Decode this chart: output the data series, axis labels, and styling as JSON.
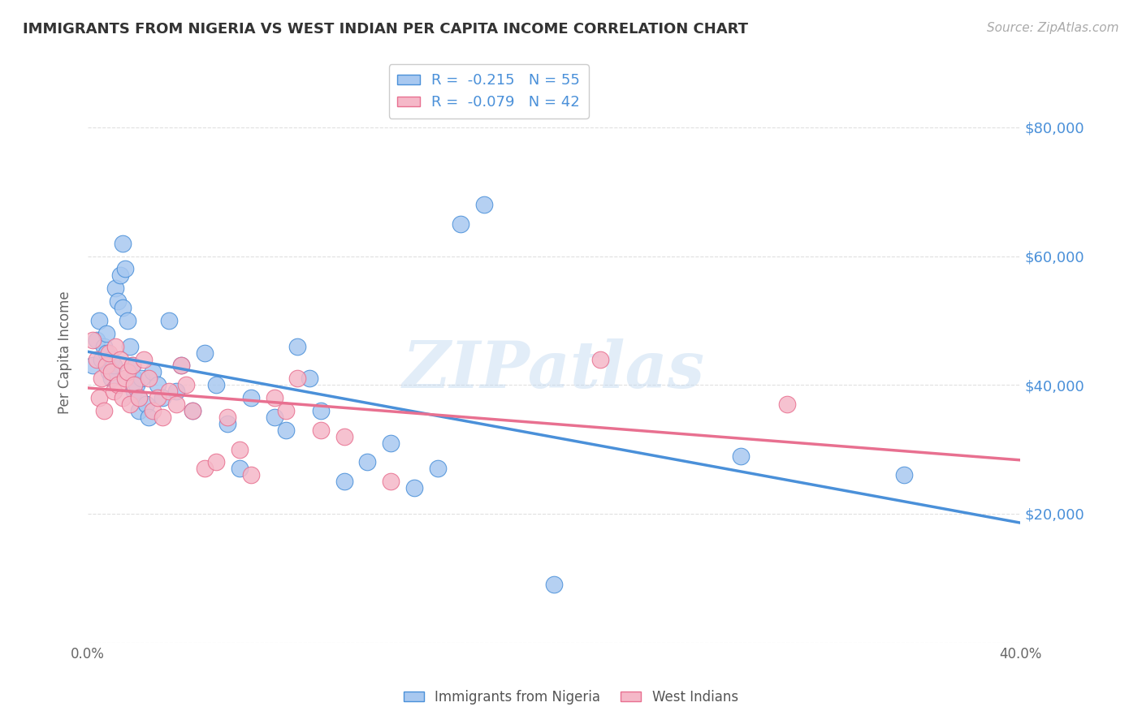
{
  "title": "IMMIGRANTS FROM NIGERIA VS WEST INDIAN PER CAPITA INCOME CORRELATION CHART",
  "source": "Source: ZipAtlas.com",
  "ylabel": "Per Capita Income",
  "yticks": [
    0,
    20000,
    40000,
    60000,
    80000
  ],
  "ytick_labels": [
    "",
    "$20,000",
    "$40,000",
    "$60,000",
    "$80,000"
  ],
  "xlim": [
    0.0,
    0.4
  ],
  "ylim": [
    0,
    90000
  ],
  "watermark": "ZIPatlas",
  "legend_r1": "R =  -0.215   N = 55",
  "legend_r2": "R =  -0.079   N = 42",
  "blue_color": "#a8c8f0",
  "pink_color": "#f5b8c8",
  "blue_line_color": "#4a90d9",
  "pink_line_color": "#e87090",
  "nigeria_x": [
    0.002,
    0.004,
    0.005,
    0.006,
    0.007,
    0.008,
    0.008,
    0.009,
    0.01,
    0.01,
    0.011,
    0.012,
    0.013,
    0.014,
    0.015,
    0.015,
    0.016,
    0.017,
    0.018,
    0.019,
    0.02,
    0.02,
    0.021,
    0.022,
    0.022,
    0.023,
    0.025,
    0.026,
    0.028,
    0.03,
    0.032,
    0.035,
    0.038,
    0.04,
    0.045,
    0.05,
    0.055,
    0.06,
    0.065,
    0.07,
    0.08,
    0.085,
    0.09,
    0.095,
    0.1,
    0.11,
    0.12,
    0.13,
    0.14,
    0.15,
    0.16,
    0.17,
    0.2,
    0.28,
    0.35
  ],
  "nigeria_y": [
    43000,
    47000,
    50000,
    44000,
    46000,
    45000,
    48000,
    42000,
    41000,
    44000,
    43000,
    55000,
    53000,
    57000,
    62000,
    52000,
    58000,
    50000,
    46000,
    43000,
    41000,
    39000,
    40000,
    38000,
    36000,
    41000,
    37000,
    35000,
    42000,
    40000,
    38000,
    50000,
    39000,
    43000,
    36000,
    45000,
    40000,
    34000,
    27000,
    38000,
    35000,
    33000,
    46000,
    41000,
    36000,
    25000,
    28000,
    31000,
    24000,
    27000,
    65000,
    68000,
    9000,
    29000,
    26000
  ],
  "westindian_x": [
    0.002,
    0.004,
    0.005,
    0.006,
    0.007,
    0.008,
    0.009,
    0.01,
    0.011,
    0.012,
    0.013,
    0.014,
    0.015,
    0.016,
    0.017,
    0.018,
    0.019,
    0.02,
    0.022,
    0.024,
    0.026,
    0.028,
    0.03,
    0.032,
    0.035,
    0.038,
    0.04,
    0.042,
    0.045,
    0.05,
    0.055,
    0.06,
    0.065,
    0.07,
    0.08,
    0.085,
    0.09,
    0.1,
    0.11,
    0.13,
    0.22,
    0.3
  ],
  "westindian_y": [
    47000,
    44000,
    38000,
    41000,
    36000,
    43000,
    45000,
    42000,
    39000,
    46000,
    40000,
    44000,
    38000,
    41000,
    42000,
    37000,
    43000,
    40000,
    38000,
    44000,
    41000,
    36000,
    38000,
    35000,
    39000,
    37000,
    43000,
    40000,
    36000,
    27000,
    28000,
    35000,
    30000,
    26000,
    38000,
    36000,
    41000,
    33000,
    32000,
    25000,
    44000,
    37000
  ],
  "background_color": "#ffffff",
  "grid_color": "#dddddd",
  "title_color": "#333333",
  "axis_label_color": "#666666",
  "right_tick_color": "#4a90d9",
  "legend_text_color": "#4a90d9"
}
